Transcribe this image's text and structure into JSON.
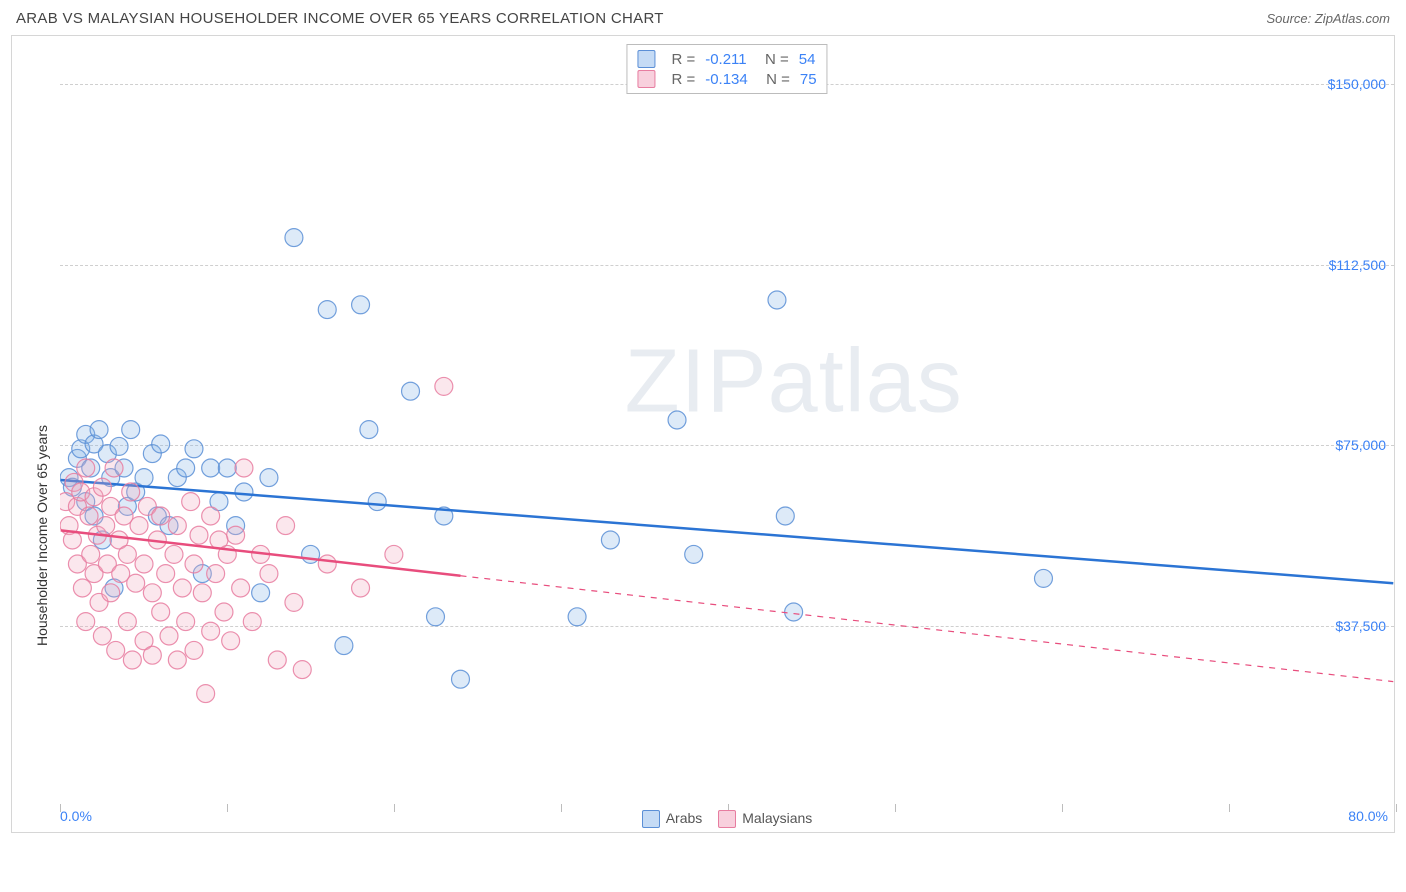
{
  "header": {
    "title": "ARAB VS MALAYSIAN HOUSEHOLDER INCOME OVER 65 YEARS CORRELATION CHART",
    "source_label": "Source: ZipAtlas.com"
  },
  "watermark": {
    "part1": "ZIP",
    "part2": "atlas"
  },
  "chart": {
    "type": "scatter",
    "y_axis_label": "Householder Income Over 65 years",
    "xlim": [
      0,
      80
    ],
    "ylim": [
      0,
      160000
    ],
    "x_min_label": "0.0%",
    "x_max_label": "80.0%",
    "x_ticks": [
      0,
      10,
      20,
      30,
      40,
      50,
      60,
      70,
      80
    ],
    "y_gridlines": [
      37500,
      75000,
      112500,
      150000
    ],
    "y_tick_labels": [
      "$37,500",
      "$75,000",
      "$112,500",
      "$150,000"
    ],
    "grid_color": "#cfcfcf",
    "background_color": "#ffffff",
    "marker_radius": 9,
    "marker_fill_opacity": 0.28,
    "marker_stroke_opacity": 0.85,
    "trend_line_width": 2.5
  },
  "series": [
    {
      "name": "Arabs",
      "color": "#85b2e6",
      "stroke": "#5b8fd6",
      "line_color": "#2b74d4",
      "R": "-0.211",
      "N": "54",
      "trend": {
        "x1": 0,
        "y1": 67500,
        "x2": 80,
        "y2": 46000,
        "solid_until_x": 80
      },
      "points": [
        [
          0.5,
          68000
        ],
        [
          0.7,
          66000
        ],
        [
          1.0,
          72000
        ],
        [
          1.2,
          74000
        ],
        [
          1.5,
          63000
        ],
        [
          1.5,
          77000
        ],
        [
          1.8,
          70000
        ],
        [
          2.0,
          60000
        ],
        [
          2.0,
          75000
        ],
        [
          2.3,
          78000
        ],
        [
          2.5,
          55000
        ],
        [
          2.8,
          73000
        ],
        [
          3.0,
          68000
        ],
        [
          3.2,
          45000
        ],
        [
          3.5,
          74500
        ],
        [
          3.8,
          70000
        ],
        [
          4.0,
          62000
        ],
        [
          4.2,
          78000
        ],
        [
          4.5,
          65000
        ],
        [
          5.0,
          68000
        ],
        [
          5.5,
          73000
        ],
        [
          5.8,
          60000
        ],
        [
          6.0,
          75000
        ],
        [
          6.5,
          58000
        ],
        [
          7.0,
          68000
        ],
        [
          7.5,
          70000
        ],
        [
          8.0,
          74000
        ],
        [
          8.5,
          48000
        ],
        [
          9.0,
          70000
        ],
        [
          9.5,
          63000
        ],
        [
          10.0,
          70000
        ],
        [
          10.5,
          58000
        ],
        [
          11.0,
          65000
        ],
        [
          12.0,
          44000
        ],
        [
          12.5,
          68000
        ],
        [
          14.0,
          118000
        ],
        [
          15.0,
          52000
        ],
        [
          16.0,
          103000
        ],
        [
          17.0,
          33000
        ],
        [
          18.0,
          104000
        ],
        [
          18.5,
          78000
        ],
        [
          19.0,
          63000
        ],
        [
          21.0,
          86000
        ],
        [
          22.5,
          39000
        ],
        [
          23.0,
          60000
        ],
        [
          24.0,
          26000
        ],
        [
          31.0,
          39000
        ],
        [
          33.0,
          55000
        ],
        [
          37.0,
          80000
        ],
        [
          38.0,
          52000
        ],
        [
          43.0,
          105000
        ],
        [
          43.5,
          60000
        ],
        [
          44.0,
          40000
        ],
        [
          59.0,
          47000
        ]
      ]
    },
    {
      "name": "Malaysians",
      "color": "#f2a8c0",
      "stroke": "#e77da0",
      "line_color": "#e84d7d",
      "R": "-0.134",
      "N": "75",
      "trend": {
        "x1": 0,
        "y1": 57000,
        "x2": 80,
        "y2": 25500,
        "solid_until_x": 24
      },
      "points": [
        [
          0.3,
          63000
        ],
        [
          0.5,
          58000
        ],
        [
          0.7,
          55000
        ],
        [
          0.8,
          67000
        ],
        [
          1.0,
          62000
        ],
        [
          1.0,
          50000
        ],
        [
          1.2,
          65000
        ],
        [
          1.3,
          45000
        ],
        [
          1.5,
          70000
        ],
        [
          1.5,
          38000
        ],
        [
          1.7,
          60000
        ],
        [
          1.8,
          52000
        ],
        [
          2.0,
          64000
        ],
        [
          2.0,
          48000
        ],
        [
          2.2,
          56000
        ],
        [
          2.3,
          42000
        ],
        [
          2.5,
          66000
        ],
        [
          2.5,
          35000
        ],
        [
          2.7,
          58000
        ],
        [
          2.8,
          50000
        ],
        [
          3.0,
          62000
        ],
        [
          3.0,
          44000
        ],
        [
          3.2,
          70000
        ],
        [
          3.3,
          32000
        ],
        [
          3.5,
          55000
        ],
        [
          3.6,
          48000
        ],
        [
          3.8,
          60000
        ],
        [
          4.0,
          52000
        ],
        [
          4.0,
          38000
        ],
        [
          4.2,
          65000
        ],
        [
          4.3,
          30000
        ],
        [
          4.5,
          46000
        ],
        [
          4.7,
          58000
        ],
        [
          5.0,
          50000
        ],
        [
          5.0,
          34000
        ],
        [
          5.2,
          62000
        ],
        [
          5.5,
          44000
        ],
        [
          5.5,
          31000
        ],
        [
          5.8,
          55000
        ],
        [
          6.0,
          40000
        ],
        [
          6.0,
          60000
        ],
        [
          6.3,
          48000
        ],
        [
          6.5,
          35000
        ],
        [
          6.8,
          52000
        ],
        [
          7.0,
          30000
        ],
        [
          7.0,
          58000
        ],
        [
          7.3,
          45000
        ],
        [
          7.5,
          38000
        ],
        [
          7.8,
          63000
        ],
        [
          8.0,
          50000
        ],
        [
          8.0,
          32000
        ],
        [
          8.3,
          56000
        ],
        [
          8.5,
          44000
        ],
        [
          8.7,
          23000
        ],
        [
          9.0,
          60000
        ],
        [
          9.0,
          36000
        ],
        [
          9.3,
          48000
        ],
        [
          9.5,
          55000
        ],
        [
          9.8,
          40000
        ],
        [
          10.0,
          52000
        ],
        [
          10.2,
          34000
        ],
        [
          10.5,
          56000
        ],
        [
          10.8,
          45000
        ],
        [
          11.0,
          70000
        ],
        [
          11.5,
          38000
        ],
        [
          12.0,
          52000
        ],
        [
          12.5,
          48000
        ],
        [
          13.0,
          30000
        ],
        [
          13.5,
          58000
        ],
        [
          14.0,
          42000
        ],
        [
          14.5,
          28000
        ],
        [
          16.0,
          50000
        ],
        [
          18.0,
          45000
        ],
        [
          20.0,
          52000
        ],
        [
          23.0,
          87000
        ]
      ]
    }
  ],
  "bottom_legend": [
    {
      "label": "Arabs",
      "fill": "#c5dbf5",
      "border": "#5b8fd6"
    },
    {
      "label": "Malaysians",
      "fill": "#f8d0dd",
      "border": "#e77da0"
    }
  ]
}
